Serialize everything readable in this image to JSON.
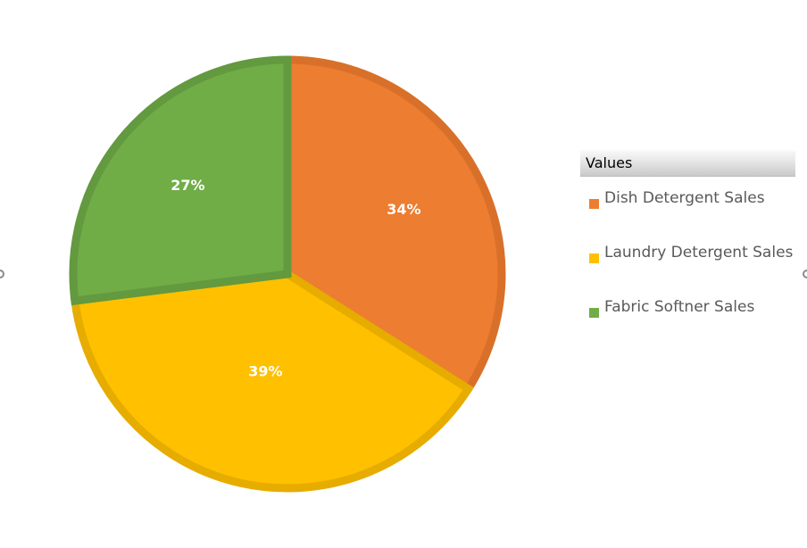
{
  "chart_data": {
    "type": "pie",
    "legend_title": "Values",
    "legend_position": "right",
    "categories": [
      "Dish Detergent Sales",
      "Laundry Detergent Sales",
      "Fabric Softner Sales"
    ],
    "values": [
      34,
      39,
      27
    ],
    "labels": [
      "34%",
      "39%",
      "27%"
    ],
    "colors": [
      "#ED7D31",
      "#FFC000",
      "#70AD47"
    ],
    "border_colors": [
      "#D9702A",
      "#E6AC00",
      "#63993F"
    ]
  }
}
